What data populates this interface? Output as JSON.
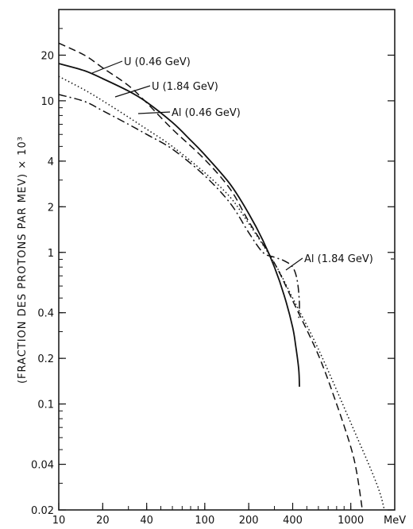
{
  "chart_data": {
    "type": "line",
    "title": "",
    "ylabel": "(FRACTION DES PROTONS PAR MEV) × 10³",
    "x_unit": "MeV",
    "x_scale": "log",
    "y_scale": "log",
    "xlim": [
      10,
      2000
    ],
    "ylim": [
      0.02,
      40
    ],
    "grid": false,
    "x_ticks": [
      {
        "value": 10,
        "label": "10"
      },
      {
        "value": 20,
        "label": "20"
      },
      {
        "value": 40,
        "label": "40"
      },
      {
        "value": 100,
        "label": "100"
      },
      {
        "value": 200,
        "label": "200"
      },
      {
        "value": 400,
        "label": "400"
      },
      {
        "value": 1000,
        "label": "1000"
      }
    ],
    "y_ticks": [
      {
        "value": 20,
        "label": "20"
      },
      {
        "value": 10,
        "label": "10"
      },
      {
        "value": 4,
        "label": "4"
      },
      {
        "value": 2,
        "label": "2"
      },
      {
        "value": 1,
        "label": "1"
      },
      {
        "value": 0.4,
        "label": "0.4"
      },
      {
        "value": 0.2,
        "label": "0.2"
      },
      {
        "value": 0.1,
        "label": "0.1"
      },
      {
        "value": 0.04,
        "label": "0.04"
      },
      {
        "value": 0.02,
        "label": "0.02"
      }
    ],
    "series": [
      {
        "name": "U (1.84 GeV)",
        "line_style": "solid",
        "points": [
          [
            10,
            17.6
          ],
          [
            15,
            15.8
          ],
          [
            20,
            14
          ],
          [
            30,
            11.6
          ],
          [
            40,
            9.8
          ],
          [
            60,
            7.2
          ],
          [
            80,
            5.5
          ],
          [
            100,
            4.4
          ],
          [
            150,
            2.8
          ],
          [
            200,
            1.8
          ],
          [
            250,
            1.2
          ],
          [
            300,
            0.8
          ],
          [
            350,
            0.52
          ],
          [
            400,
            0.32
          ],
          [
            420,
            0.24
          ],
          [
            440,
            0.17
          ],
          [
            445,
            0.13
          ]
        ]
      },
      {
        "name": "U (0.46 GeV)",
        "line_style": "dashed",
        "points": [
          [
            10,
            24
          ],
          [
            15,
            20
          ],
          [
            20,
            16.5
          ],
          [
            30,
            12.6
          ],
          [
            40,
            9.7
          ],
          [
            60,
            6.5
          ],
          [
            100,
            4.1
          ],
          [
            150,
            2.6
          ],
          [
            200,
            1.6
          ],
          [
            300,
            0.85
          ],
          [
            400,
            0.48
          ],
          [
            600,
            0.21
          ],
          [
            800,
            0.1
          ],
          [
            1000,
            0.052
          ],
          [
            1100,
            0.035
          ],
          [
            1200,
            0.02
          ]
        ]
      },
      {
        "name": "Al (0.46 GeV)",
        "line_style": "dotted",
        "points": [
          [
            10,
            14.5
          ],
          [
            15,
            11.8
          ],
          [
            20,
            10
          ],
          [
            30,
            7.8
          ],
          [
            40,
            6.5
          ],
          [
            60,
            5
          ],
          [
            100,
            3.35
          ],
          [
            150,
            2.3
          ],
          [
            200,
            1.55
          ],
          [
            300,
            0.85
          ],
          [
            400,
            0.5
          ],
          [
            600,
            0.23
          ],
          [
            1000,
            0.075
          ],
          [
            1500,
            0.03
          ],
          [
            1700,
            0.02
          ]
        ]
      },
      {
        "name": "Al (1.84 GeV)",
        "line_style": "dashdot",
        "points": [
          [
            10,
            11
          ],
          [
            15,
            9.9
          ],
          [
            20,
            8.6
          ],
          [
            30,
            7
          ],
          [
            40,
            6
          ],
          [
            60,
            4.8
          ],
          [
            100,
            3.2
          ],
          [
            150,
            2.1
          ],
          [
            200,
            1.35
          ],
          [
            250,
            1.0
          ],
          [
            300,
            0.93
          ],
          [
            350,
            0.88
          ],
          [
            400,
            0.8
          ],
          [
            430,
            0.65
          ],
          [
            445,
            0.46
          ],
          [
            440,
            0.37
          ]
        ]
      }
    ]
  }
}
